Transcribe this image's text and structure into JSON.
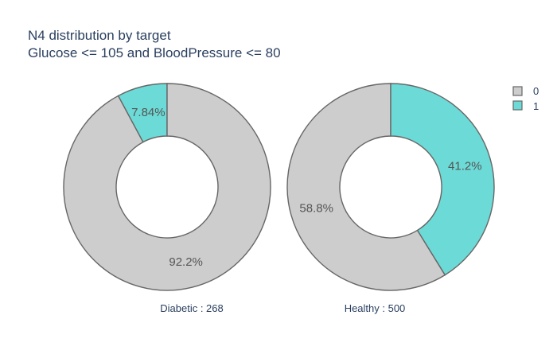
{
  "chart_data": {
    "type": "pie",
    "title": {
      "line1": "N4 distribution by target",
      "line2": "Glucose <= 105 and BloodPressure <= 80"
    },
    "colors": {
      "0": "#cdcdcd",
      "1": "#6cdad6"
    },
    "legend": {
      "placement": "top-right",
      "entries": [
        "0",
        "1"
      ]
    },
    "charts": [
      {
        "name": "Diabetic : 268",
        "slices": [
          {
            "label": "0",
            "percent": 92.2,
            "text": "92.2%"
          },
          {
            "label": "1",
            "percent": 7.84,
            "text": "7.84%"
          }
        ]
      },
      {
        "name": "Healthy : 500",
        "slices": [
          {
            "label": "0",
            "percent": 58.8,
            "text": "58.8%"
          },
          {
            "label": "1",
            "percent": 41.2,
            "text": "41.2%"
          }
        ]
      }
    ]
  }
}
